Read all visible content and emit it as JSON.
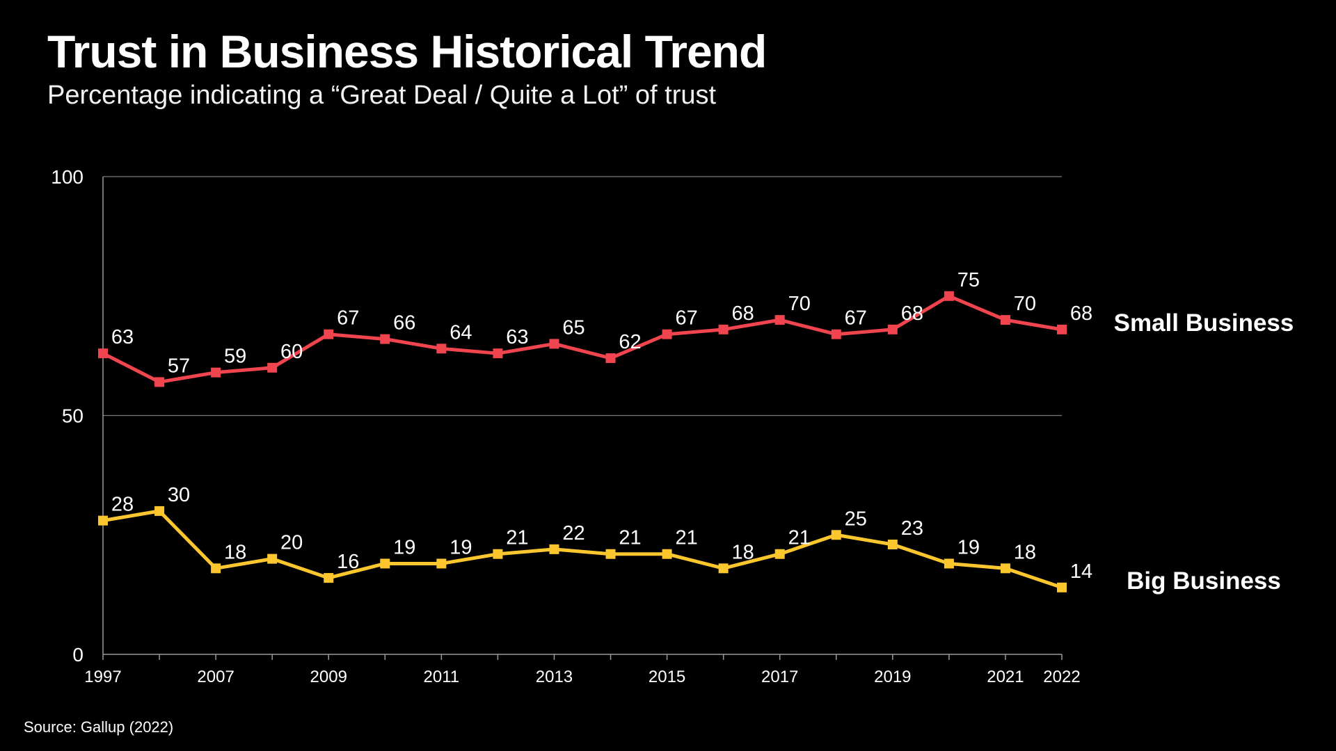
{
  "chart_data": {
    "type": "line",
    "title": "Trust in Business Historical Trend",
    "subtitle": "Percentage indicating a “Great Deal / Quite a Lot” of trust",
    "source": "Source: Gallup (2022)",
    "x": [
      "1997",
      "",
      "2007",
      "",
      "2009",
      "",
      "2011",
      "",
      "2013",
      "",
      "2015",
      "",
      "2017",
      "",
      "2019",
      "",
      "2021",
      "2022"
    ],
    "ylim": [
      0,
      100
    ],
    "yticks": [
      0,
      50,
      100
    ],
    "grid": true,
    "legend": "right, labels beside line ends",
    "series": [
      {
        "name": "Small Business",
        "color": "#f0444f",
        "values": [
          63,
          57,
          59,
          60,
          67,
          66,
          64,
          63,
          65,
          62,
          67,
          68,
          70,
          67,
          68,
          75,
          70,
          68
        ]
      },
      {
        "name": "Big Business",
        "color": "#fcc72e",
        "values": [
          28,
          30,
          18,
          20,
          16,
          19,
          19,
          21,
          22,
          21,
          21,
          18,
          21,
          25,
          23,
          19,
          18,
          14
        ]
      }
    ]
  }
}
